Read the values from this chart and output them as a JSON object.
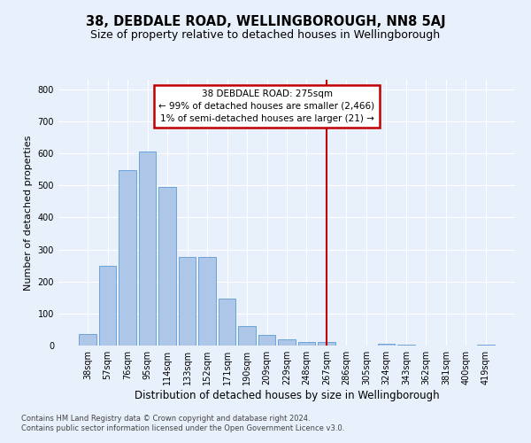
{
  "title": "38, DEBDALE ROAD, WELLINGBOROUGH, NN8 5AJ",
  "subtitle": "Size of property relative to detached houses in Wellingborough",
  "xlabel": "Distribution of detached houses by size in Wellingborough",
  "ylabel": "Number of detached properties",
  "footnote1": "Contains HM Land Registry data © Crown copyright and database right 2024.",
  "footnote2": "Contains public sector information licensed under the Open Government Licence v3.0.",
  "bar_labels": [
    "38sqm",
    "57sqm",
    "76sqm",
    "95sqm",
    "114sqm",
    "133sqm",
    "152sqm",
    "171sqm",
    "190sqm",
    "209sqm",
    "229sqm",
    "248sqm",
    "267sqm",
    "286sqm",
    "305sqm",
    "324sqm",
    "343sqm",
    "362sqm",
    "381sqm",
    "400sqm",
    "419sqm"
  ],
  "bar_values": [
    35,
    250,
    548,
    607,
    495,
    278,
    278,
    148,
    60,
    33,
    18,
    12,
    10,
    0,
    0,
    5,
    3,
    0,
    0,
    0,
    4
  ],
  "bar_color": "#aec6e8",
  "bar_edge_color": "#5b9bd5",
  "vline_x": 12.0,
  "vline_color": "#c00000",
  "ylim": [
    0,
    830
  ],
  "yticks": [
    0,
    100,
    200,
    300,
    400,
    500,
    600,
    700,
    800
  ],
  "annotation_title": "38 DEBDALE ROAD: 275sqm",
  "annotation_line1": "← 99% of detached houses are smaller (2,466)",
  "annotation_line2": "1% of semi-detached houses are larger (21) →",
  "annotation_box_color": "#c00000",
  "bg_color": "#e8f0fb",
  "plot_bg_color": "#e8f0fb",
  "grid_color": "#ffffff",
  "title_fontsize": 10.5,
  "subtitle_fontsize": 9,
  "tick_fontsize": 7,
  "ylabel_fontsize": 8,
  "xlabel_fontsize": 8.5,
  "annot_fontsize": 7.5
}
